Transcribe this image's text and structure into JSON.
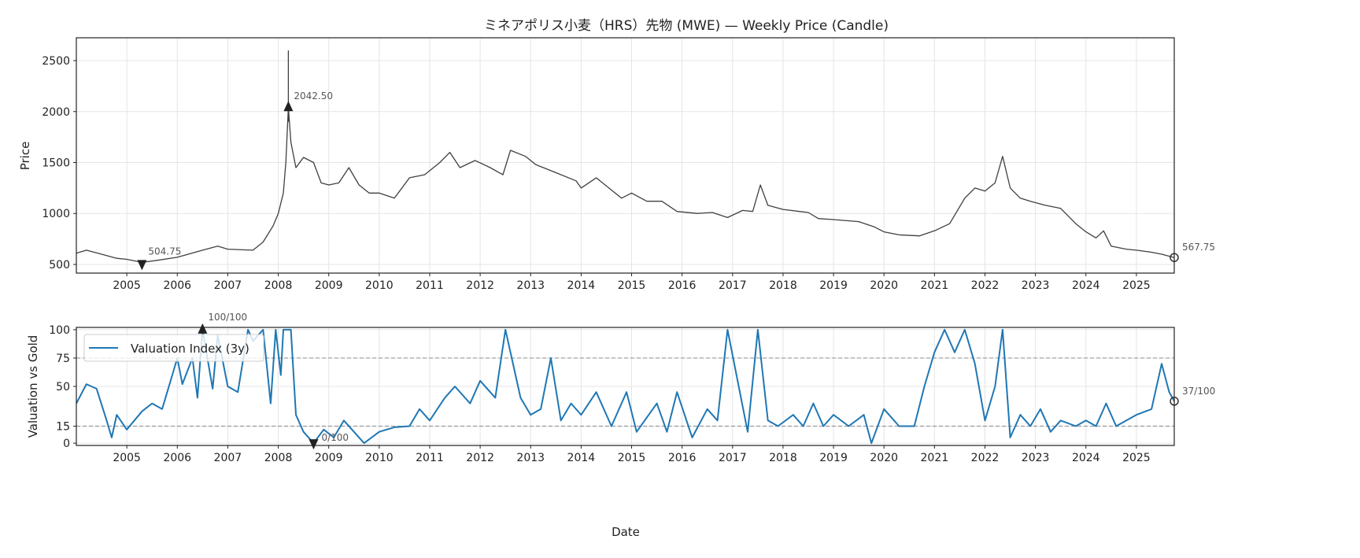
{
  "title": "ミネアポリス小麦（HRS）先物 (MWE) — Weekly Price (Candle)",
  "chart_data": [
    {
      "type": "line",
      "name": "price",
      "title": "ミネアポリス小麦（HRS）先物 (MWE) — Weekly Price (Candle)",
      "xlabel": "",
      "ylabel": "Price",
      "xlim": [
        2004.0,
        2025.75
      ],
      "ylim": [
        415,
        2724
      ],
      "xticks": [
        2005,
        2006,
        2007,
        2008,
        2009,
        2010,
        2011,
        2012,
        2013,
        2014,
        2015,
        2016,
        2017,
        2018,
        2019,
        2020,
        2021,
        2022,
        2023,
        2024,
        2025
      ],
      "yticks": [
        500,
        1000,
        1500,
        2000,
        2500
      ],
      "grid": true,
      "color": "#404040",
      "x": [
        2004.0,
        2004.2,
        2004.5,
        2004.8,
        2005.0,
        2005.3,
        2005.6,
        2006.0,
        2006.5,
        2006.8,
        2007.0,
        2007.5,
        2007.7,
        2007.9,
        2008.0,
        2008.1,
        2008.15,
        2008.2,
        2008.25,
        2008.35,
        2008.5,
        2008.7,
        2008.85,
        2009.0,
        2009.2,
        2009.4,
        2009.6,
        2009.8,
        2010.0,
        2010.3,
        2010.6,
        2010.9,
        2011.2,
        2011.4,
        2011.6,
        2011.9,
        2012.2,
        2012.45,
        2012.6,
        2012.9,
        2013.1,
        2013.5,
        2013.9,
        2014.0,
        2014.3,
        2014.6,
        2014.8,
        2015.0,
        2015.3,
        2015.6,
        2015.9,
        2016.3,
        2016.6,
        2016.9,
        2017.2,
        2017.4,
        2017.55,
        2017.7,
        2018.0,
        2018.5,
        2018.7,
        2019.0,
        2019.5,
        2019.8,
        2020.0,
        2020.3,
        2020.7,
        2021.0,
        2021.3,
        2021.6,
        2021.8,
        2022.0,
        2022.2,
        2022.35,
        2022.5,
        2022.7,
        2022.9,
        2023.2,
        2023.5,
        2023.8,
        2024.0,
        2024.2,
        2024.35,
        2024.5,
        2024.8,
        2025.0,
        2025.3,
        2025.5,
        2025.75
      ],
      "y": [
        610,
        640,
        600,
        560,
        550,
        520,
        540,
        570,
        640,
        680,
        650,
        640,
        720,
        880,
        1000,
        1200,
        1500,
        2042.5,
        1700,
        1450,
        1550,
        1500,
        1300,
        1280,
        1300,
        1450,
        1280,
        1200,
        1200,
        1150,
        1350,
        1380,
        1500,
        1600,
        1450,
        1520,
        1450,
        1380,
        1620,
        1560,
        1480,
        1400,
        1320,
        1250,
        1350,
        1230,
        1150,
        1200,
        1120,
        1120,
        1020,
        1000,
        1010,
        960,
        1030,
        1020,
        1280,
        1080,
        1040,
        1010,
        950,
        940,
        920,
        870,
        820,
        790,
        780,
        830,
        900,
        1150,
        1250,
        1220,
        1300,
        1560,
        1250,
        1150,
        1120,
        1080,
        1050,
        900,
        820,
        760,
        830,
        680,
        650,
        640,
        620,
        600,
        567.75
      ],
      "annotations": [
        {
          "label": "2042.50",
          "x": 2008.2,
          "y": 2042.5,
          "marker": "triangle-up"
        },
        {
          "label": "504.75",
          "x": 2005.3,
          "y": 504.75,
          "marker": "triangle-down"
        },
        {
          "label": "567.75",
          "x": 2025.75,
          "y": 567.75,
          "marker": "circle"
        }
      ]
    },
    {
      "type": "line",
      "name": "valuation",
      "xlabel": "Date",
      "ylabel": "Valuation vs Gold",
      "xlim": [
        2004.0,
        2025.75
      ],
      "ylim": [
        -2,
        102
      ],
      "xticks": [
        2005,
        2006,
        2007,
        2008,
        2009,
        2010,
        2011,
        2012,
        2013,
        2014,
        2015,
        2016,
        2017,
        2018,
        2019,
        2020,
        2021,
        2022,
        2023,
        2024,
        2025
      ],
      "yticks": [
        0,
        15,
        50,
        75,
        100
      ],
      "hlines": [
        15,
        75
      ],
      "grid": true,
      "legend": {
        "label": "Valuation Index (3y)",
        "position": "top-left"
      },
      "color": "#1f77b4",
      "x": [
        2004.0,
        2004.2,
        2004.4,
        2004.6,
        2004.7,
        2004.8,
        2005.0,
        2005.3,
        2005.5,
        2005.7,
        2005.9,
        2006.0,
        2006.1,
        2006.3,
        2006.4,
        2006.5,
        2006.7,
        2006.8,
        2007.0,
        2007.2,
        2007.4,
        2007.5,
        2007.7,
        2007.85,
        2007.95,
        2008.05,
        2008.1,
        2008.25,
        2008.35,
        2008.5,
        2008.7,
        2008.9,
        2009.1,
        2009.3,
        2009.5,
        2009.7,
        2010.0,
        2010.3,
        2010.6,
        2010.8,
        2011.0,
        2011.3,
        2011.5,
        2011.8,
        2012.0,
        2012.3,
        2012.5,
        2012.8,
        2013.0,
        2013.2,
        2013.4,
        2013.6,
        2013.8,
        2014.0,
        2014.3,
        2014.6,
        2014.9,
        2015.1,
        2015.5,
        2015.7,
        2015.9,
        2016.2,
        2016.5,
        2016.7,
        2016.9,
        2017.1,
        2017.3,
        2017.5,
        2017.7,
        2017.9,
        2018.2,
        2018.4,
        2018.6,
        2018.8,
        2019.0,
        2019.3,
        2019.6,
        2019.75,
        2020.0,
        2020.3,
        2020.6,
        2020.8,
        2021.0,
        2021.2,
        2021.4,
        2021.6,
        2021.8,
        2022.0,
        2022.2,
        2022.35,
        2022.5,
        2022.7,
        2022.9,
        2023.1,
        2023.3,
        2023.5,
        2023.8,
        2024.0,
        2024.2,
        2024.4,
        2024.6,
        2024.8,
        2025.0,
        2025.3,
        2025.5,
        2025.65,
        2025.75
      ],
      "y": [
        35,
        52,
        48,
        20,
        5,
        25,
        12,
        28,
        35,
        30,
        60,
        75,
        52,
        75,
        40,
        100,
        48,
        95,
        50,
        45,
        100,
        90,
        100,
        35,
        100,
        60,
        100,
        100,
        25,
        10,
        0,
        12,
        5,
        20,
        10,
        0,
        10,
        14,
        15,
        30,
        20,
        40,
        50,
        35,
        55,
        40,
        100,
        40,
        25,
        30,
        75,
        20,
        35,
        25,
        45,
        15,
        45,
        10,
        35,
        10,
        45,
        5,
        30,
        20,
        100,
        55,
        10,
        100,
        20,
        15,
        25,
        15,
        35,
        15,
        25,
        15,
        25,
        0,
        30,
        15,
        15,
        50,
        80,
        100,
        80,
        100,
        70,
        20,
        50,
        100,
        5,
        25,
        15,
        30,
        10,
        20,
        15,
        20,
        15,
        35,
        15,
        20,
        25,
        30,
        70,
        45,
        37
      ],
      "annotations": [
        {
          "label": "100/100",
          "x": 2006.5,
          "y": 100,
          "marker": "triangle-up"
        },
        {
          "label": "0/100",
          "x": 2008.7,
          "y": 0,
          "marker": "triangle-down"
        },
        {
          "label": "37/100",
          "x": 2025.75,
          "y": 37,
          "marker": "circle"
        }
      ]
    }
  ]
}
